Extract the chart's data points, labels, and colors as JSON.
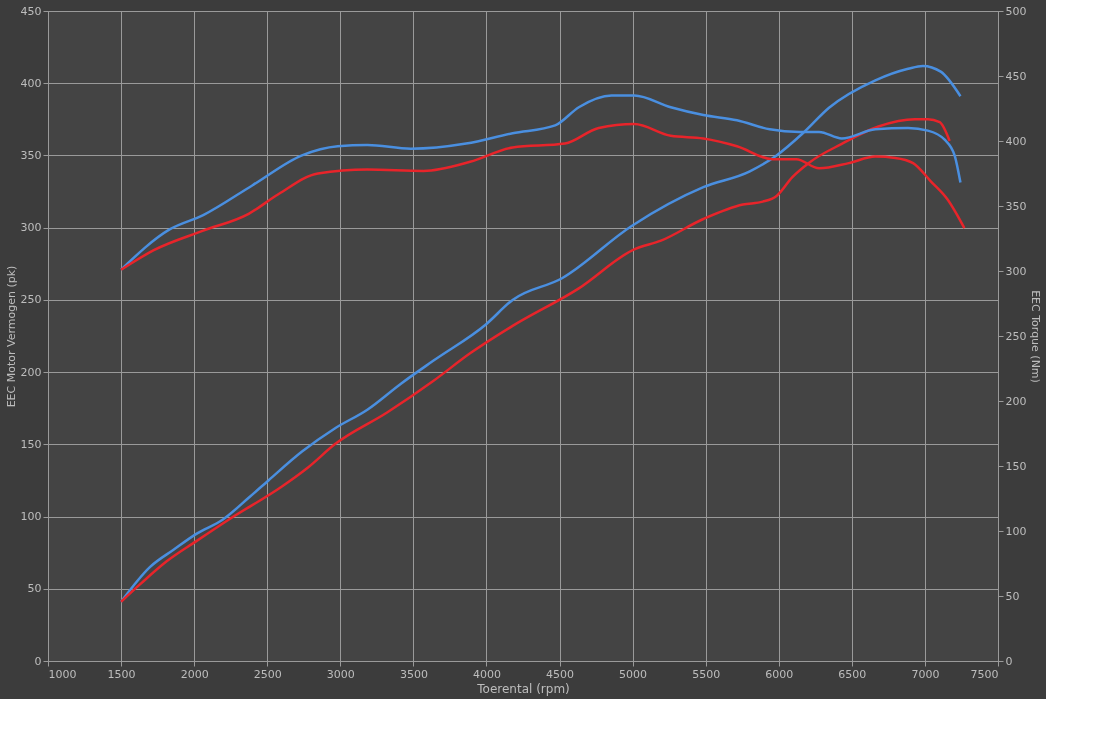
{
  "chart_data": {
    "type": "line",
    "xlabel": "Toerental (rpm)",
    "ylabel": "EEC Motor Vermogen (pk)",
    "y2label": "EEC Torque (Nm)",
    "xlim": [
      1000,
      7500
    ],
    "xticks": [
      1000,
      1500,
      2000,
      2500,
      3000,
      3500,
      4000,
      4500,
      5000,
      5500,
      6000,
      6500,
      7000,
      7500
    ],
    "ylim": [
      0,
      450
    ],
    "yticks": [
      0,
      50,
      100,
      150,
      200,
      250,
      300,
      350,
      400,
      450
    ],
    "y2lim": [
      0,
      500
    ],
    "y2ticks": [
      0,
      50,
      100,
      150,
      200,
      250,
      300,
      350,
      400,
      450,
      500
    ],
    "grid": true,
    "legend": false,
    "series": [
      {
        "color": "#4a8fe0",
        "axis": "y",
        "x": [
          1500,
          1697,
          1859,
          2015,
          2197,
          2373,
          2508,
          2738,
          2962,
          3185,
          3415,
          3638,
          3996,
          4179,
          4517,
          4991,
          5484,
          5802,
          5985,
          6161,
          6344,
          6661,
          6885,
          6986,
          7108,
          7243
        ],
        "values": [
          41,
          65,
          77,
          88,
          98,
          113,
          125,
          145,
          161,
          174,
          192,
          208,
          233,
          250,
          265,
          301,
          328,
          339,
          350,
          365,
          383,
          402,
          410,
          412,
          408,
          391
        ]
      },
      {
        "color": "#e8242a",
        "axis": "y",
        "x": [
          1500,
          1629,
          1812,
          2015,
          2238,
          2603,
          2779,
          2962,
          3320,
          3638,
          3888,
          4179,
          4632,
          5011,
          5194,
          5484,
          5755,
          5890,
          5985,
          6093,
          6208,
          6431,
          6682,
          6932,
          7020,
          7101,
          7169
        ],
        "values": [
          41,
          53,
          69,
          83,
          98,
          121,
          134,
          150,
          172,
          194,
          213,
          232,
          258,
          285,
          291,
          306,
          316,
          318,
          322,
          335,
          345,
          358,
          370,
          375,
          375,
          373,
          360
        ]
      },
      {
        "color": "#4a8fe0",
        "axis": "y2",
        "x": [
          1500,
          1832,
          2062,
          2400,
          2738,
          2982,
          3185,
          3482,
          3861,
          4179,
          4470,
          4632,
          4856,
          5011,
          5261,
          5484,
          5714,
          5938,
          6141,
          6276,
          6431,
          6661,
          6885,
          7020,
          7135,
          7203,
          7243
        ],
        "values": [
          301,
          332,
          343,
          366,
          389,
          396,
          397,
          394,
          398,
          406,
          412,
          426,
          435,
          435,
          426,
          420,
          416,
          409,
          407,
          407,
          402,
          409,
          410,
          408,
          401,
          389,
          368
        ]
      },
      {
        "color": "#e8242a",
        "axis": "y2",
        "x": [
          1500,
          1724,
          2062,
          2373,
          2576,
          2847,
          3185,
          3570,
          3888,
          4179,
          4537,
          4768,
          5011,
          5261,
          5484,
          5714,
          5958,
          6120,
          6276,
          6479,
          6661,
          6797,
          6919,
          7040,
          7155,
          7270
        ],
        "values": [
          301,
          316,
          331,
          344,
          359,
          375,
          378,
          377,
          384,
          395,
          398,
          410,
          413,
          404,
          402,
          396,
          386,
          386,
          379,
          383,
          388,
          387,
          383,
          369,
          355,
          333
        ]
      }
    ]
  }
}
